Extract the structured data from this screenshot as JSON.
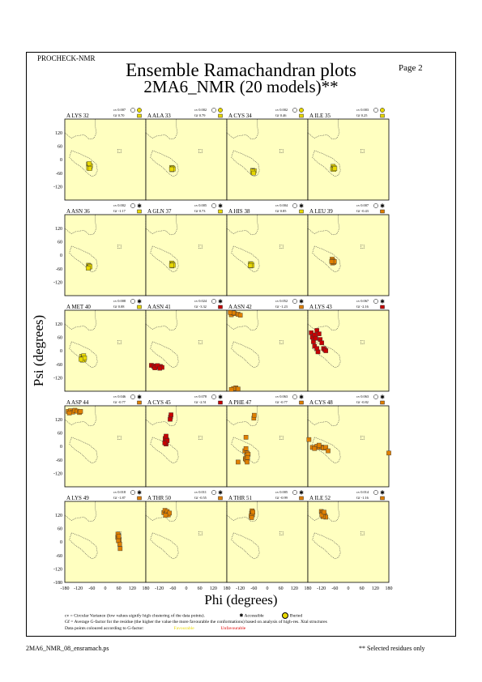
{
  "header": {
    "program": "PROCHECK-NMR",
    "title": "Ensemble Ramachandran plots",
    "subtitle": "2MA6_NMR (20 models)**",
    "page": "Page  2"
  },
  "axes": {
    "xlabel": "Phi (degrees)",
    "ylabel": "Psi (degrees)",
    "x_ticks": [
      "-180",
      "-120",
      "-60",
      "0",
      "60",
      "120",
      "180"
    ],
    "y_ticks": [
      "120",
      "60",
      "0",
      "-60",
      "-120"
    ],
    "y_tick_values": [
      120,
      60,
      0,
      -60,
      -120
    ],
    "bottom_y_tick": "-180",
    "bottom_y_tick_value": -180,
    "x_tick_values": [
      -180,
      -120,
      -60,
      0,
      60,
      120,
      180
    ]
  },
  "colors": {
    "panel_bg": "#ffffc0",
    "favourable": "#e8d800",
    "mid": "#e08000",
    "unfavourable": "#c80000"
  },
  "legend": {
    "cv_line": "cv = Circular Variance (low values signify high clustering of the data points).",
    "accessible": "Accessible",
    "buried": "Buried",
    "gf_line": "Gf = Average G-factor for the residue (the higher the value the more favourable the conformations) based on analysis of high-res. Xtal structures",
    "colour_line": "Data points coloured according to G-factor:",
    "favourable": "Favourable",
    "unfavourable": "Unfavourable"
  },
  "footer": {
    "left": "2MA6_NMR_08_ensramach.ps",
    "right": "** Selected residues only"
  },
  "chart_data": {
    "type": "scatter",
    "xlim": [
      -180,
      180
    ],
    "ylim": [
      -180,
      180
    ],
    "grid": false,
    "panels": [
      {
        "label": "A LYS 32",
        "cv": "cv 0.007",
        "gf": "Gf  0.70",
        "access": "buried",
        "color": "fav",
        "points": [
          [
            -75,
            -20
          ],
          [
            -72,
            -30
          ],
          [
            -70,
            -25
          ],
          [
            -68,
            -35
          ],
          [
            -74,
            -38
          ],
          [
            -66,
            -28
          ],
          [
            -71,
            -18
          ],
          [
            -69,
            -40
          ]
        ]
      },
      {
        "label": "A ALA 33",
        "cv": "cv 0.002",
        "gf": "Gf  0.79",
        "access": "buried",
        "color": "fav",
        "points": [
          [
            -65,
            -35
          ],
          [
            -62,
            -40
          ],
          [
            -60,
            -38
          ],
          [
            -64,
            -45
          ],
          [
            -58,
            -42
          ],
          [
            -66,
            -42
          ]
        ]
      },
      {
        "label": "A CYS 34",
        "cv": "cv 0.002",
        "gf": "Gf  0.46",
        "access": "buried",
        "color": "fav",
        "points": [
          [
            -65,
            -48
          ],
          [
            -62,
            -55
          ],
          [
            -60,
            -52
          ],
          [
            -64,
            -58
          ],
          [
            -58,
            -50
          ],
          [
            -66,
            -52
          ],
          [
            -61,
            -60
          ]
        ]
      },
      {
        "label": "A ILE 35",
        "cv": "cv 0.003",
        "gf": "Gf  0.25",
        "access": "buried",
        "color": "fav",
        "points": [
          [
            -68,
            -30
          ],
          [
            -66,
            -38
          ],
          [
            -63,
            -35
          ],
          [
            -70,
            -42
          ],
          [
            -64,
            -44
          ],
          [
            -60,
            -40
          ]
        ]
      },
      {
        "label": "A ASN 36",
        "cv": "cv 0.002",
        "gf": "Gf -1.17",
        "access": "accessible",
        "color": "fav",
        "points": [
          [
            -75,
            -45
          ],
          [
            -72,
            -50
          ],
          [
            -70,
            -48
          ],
          [
            -74,
            -55
          ],
          [
            -68,
            -52
          ],
          [
            -76,
            -58
          ]
        ]
      },
      {
        "label": "A GLN 37",
        "cv": "cv 0.005",
        "gf": "Gf  0.73",
        "access": "accessible",
        "color": "fav",
        "points": [
          [
            -65,
            -35
          ],
          [
            -62,
            -42
          ],
          [
            -60,
            -40
          ],
          [
            -64,
            -48
          ],
          [
            -58,
            -45
          ],
          [
            -66,
            -45
          ]
        ]
      },
      {
        "label": "A HIS 38",
        "cv": "cv 0.004",
        "gf": "Gf  0.85",
        "access": "accessible",
        "color": "fav",
        "points": [
          [
            -75,
            -38
          ],
          [
            -72,
            -44
          ],
          [
            -70,
            -40
          ],
          [
            -74,
            -48
          ],
          [
            -68,
            -46
          ],
          [
            -76,
            -46
          ]
        ]
      },
      {
        "label": "A LEU 39",
        "cv": "cv 0.007",
        "gf": "Gf -0.43",
        "access": "accessible",
        "color": "mid",
        "points": [
          [
            -72,
            -18
          ],
          [
            -68,
            -25
          ],
          [
            -66,
            -30
          ],
          [
            -70,
            -35
          ],
          [
            -64,
            -32
          ],
          [
            -62,
            -28
          ],
          [
            -74,
            -28
          ]
        ]
      },
      {
        "label": "A MET 40",
        "cv": "cv 0.008",
        "gf": "Gf  0.08",
        "access": "accessible",
        "color": "fav",
        "points": [
          [
            -105,
            -25
          ],
          [
            -100,
            -35
          ],
          [
            -98,
            -30
          ],
          [
            -95,
            -40
          ],
          [
            -102,
            -42
          ],
          [
            -96,
            -22
          ],
          [
            -92,
            -32
          ],
          [
            -108,
            -38
          ]
        ]
      },
      {
        "label": "A ASN 41",
        "cv": "cv 0.024",
        "gf": "Gf -3.32",
        "access": "accessible",
        "color": "unfav",
        "points": [
          [
            -155,
            -65
          ],
          [
            -145,
            -70
          ],
          [
            -135,
            -68
          ],
          [
            -125,
            -72
          ],
          [
            -115,
            -70
          ],
          [
            -108,
            -74
          ],
          [
            -140,
            -76
          ],
          [
            -128,
            -66
          ],
          [
            -118,
            -78
          ]
        ]
      },
      {
        "label": "A ASN 42",
        "cv": "cv 0.052",
        "gf": "Gf -1.23",
        "access": "accessible",
        "color": "mid",
        "points": [
          [
            -160,
            160
          ],
          [
            -145,
            165
          ],
          [
            -130,
            162
          ],
          [
            -150,
            168
          ],
          [
            -120,
            158
          ],
          [
            -165,
            170
          ],
          [
            -140,
            -165
          ],
          [
            -150,
            -168
          ],
          [
            -130,
            -170
          ],
          [
            -160,
            -172
          ]
        ]
      },
      {
        "label": "A LYS 43",
        "cv": "cv 0.067",
        "gf": "Gf -2.16",
        "access": "accessible",
        "color": "unfav",
        "points": [
          [
            -165,
            80
          ],
          [
            -160,
            60
          ],
          [
            -150,
            70
          ],
          [
            -155,
            40
          ],
          [
            -145,
            55
          ],
          [
            -140,
            90
          ],
          [
            -130,
            75
          ],
          [
            -150,
            20
          ],
          [
            -125,
            50
          ],
          [
            -118,
            35
          ],
          [
            -110,
            10
          ],
          [
            -105,
            5
          ],
          [
            -100,
            0
          ],
          [
            -135,
            -5
          ],
          [
            -140,
            10
          ]
        ]
      },
      {
        "label": "A ASP 44",
        "cv": "cv 0.046",
        "gf": "Gf -0.77",
        "access": "accessible",
        "color": "mid",
        "points": [
          [
            -165,
            155
          ],
          [
            -155,
            158
          ],
          [
            -145,
            152
          ],
          [
            -135,
            160
          ],
          [
            -125,
            156
          ],
          [
            -160,
            148
          ],
          [
            -115,
            150
          ],
          [
            -110,
            155
          ]
        ]
      },
      {
        "label": "A CYS 45",
        "cv": "cv 0.078",
        "gf": "Gf -2.51",
        "access": "accessible",
        "color": "unfav",
        "points": [
          [
            -90,
            10
          ],
          [
            -92,
            20
          ],
          [
            -88,
            30
          ],
          [
            -94,
            35
          ],
          [
            -90,
            45
          ],
          [
            -85,
            25
          ],
          [
            -96,
            15
          ],
          [
            -70,
            130
          ],
          [
            -68,
            140
          ],
          [
            -72,
            120
          ]
        ]
      },
      {
        "label": "A PHE 47",
        "cv": "cv 0.063",
        "gf": "Gf -0.77",
        "access": "accessible",
        "color": "mid",
        "points": [
          [
            -100,
            -20
          ],
          [
            -95,
            -10
          ],
          [
            -90,
            -30
          ],
          [
            -92,
            -40
          ],
          [
            -85,
            -35
          ],
          [
            -98,
            -55
          ],
          [
            -95,
            -60
          ],
          [
            -90,
            -70
          ],
          [
            -88,
            -50
          ],
          [
            -130,
            -70
          ],
          [
            -95,
            40
          ],
          [
            -60,
            125
          ],
          [
            -58,
            138
          ]
        ]
      },
      {
        "label": "A CYS 48",
        "cv": "cv 0.063",
        "gf": "Gf -0.82",
        "access": "accessible",
        "color": "mid",
        "points": [
          [
            -160,
            -5
          ],
          [
            -150,
            -5
          ],
          [
            -140,
            0
          ],
          [
            -130,
            -5
          ],
          [
            -120,
            -3
          ],
          [
            -110,
            -8
          ],
          [
            -100,
            -5
          ],
          [
            -130,
            5
          ],
          [
            -150,
            -10
          ],
          [
            -175,
            30
          ],
          [
            -90,
            -20
          ],
          [
            180,
            -30
          ]
        ]
      },
      {
        "label": "A LYS 49",
        "cv": "cv 0.018",
        "gf": "Gf -1.87",
        "access": "accessible",
        "color": "mid",
        "points": [
          [
            55,
            20
          ],
          [
            58,
            28
          ],
          [
            60,
            15
          ],
          [
            56,
            35
          ],
          [
            62,
            10
          ],
          [
            58,
            5
          ],
          [
            64,
            -10
          ],
          [
            66,
            -30
          ],
          [
            60,
            24
          ]
        ]
      },
      {
        "label": "A THR 50",
        "cv": "cv 0.011",
        "gf": "Gf -0.55",
        "access": "accessible",
        "color": "mid",
        "points": [
          [
            -100,
            130
          ],
          [
            -95,
            140
          ],
          [
            -90,
            125
          ],
          [
            -85,
            135
          ],
          [
            -80,
            120
          ],
          [
            -75,
            128
          ],
          [
            -92,
            118
          ]
        ]
      },
      {
        "label": "A THR 51",
        "cv": "cv 0.005",
        "gf": "Gf -0.99",
        "access": "accessible",
        "color": "mid",
        "points": [
          [
            -70,
            128
          ],
          [
            -68,
            138
          ],
          [
            -66,
            120
          ],
          [
            -72,
            115
          ],
          [
            -64,
            132
          ],
          [
            -70,
            108
          ]
        ]
      },
      {
        "label": "A ILE 52",
        "cv": "cv 0.014",
        "gf": "Gf -1.16",
        "access": "accessible",
        "color": "mid",
        "points": [
          [
            -120,
            135
          ],
          [
            -115,
            130
          ],
          [
            -110,
            125
          ],
          [
            -105,
            118
          ],
          [
            -100,
            110
          ],
          [
            -112,
            112
          ],
          [
            -118,
            120
          ],
          [
            -108,
            132
          ]
        ]
      }
    ]
  }
}
